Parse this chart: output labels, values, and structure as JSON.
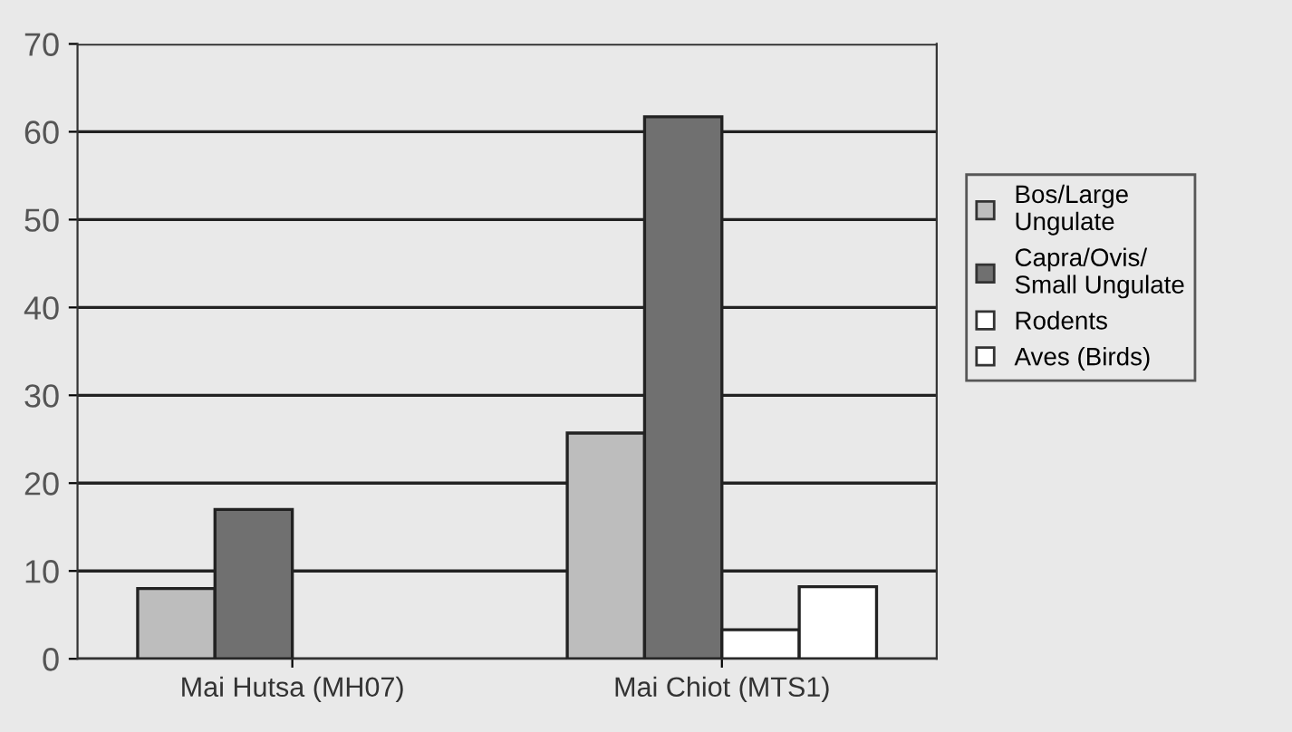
{
  "chart_data": {
    "type": "bar",
    "categories": [
      "Mai Hutsa (MH07)",
      "Mai Chiot (MTS1)"
    ],
    "series": [
      {
        "name": "Bos/Large Ungulate",
        "color": "#bdbdbd",
        "values": [
          8,
          25.7
        ]
      },
      {
        "name": "Capra/Ovis/ Small Ungulate",
        "color": "#707070",
        "values": [
          17,
          61.7
        ]
      },
      {
        "name": "Rodents",
        "color": "#ffffff",
        "values": [
          null,
          3.3
        ]
      },
      {
        "name": "Aves (Birds)",
        "color": "#ffffff",
        "values": [
          null,
          8.2
        ]
      }
    ],
    "ylim": [
      0,
      70
    ],
    "yticks": [
      0,
      10,
      20,
      30,
      40,
      50,
      60,
      70
    ],
    "grid": "y",
    "legend": "right"
  }
}
